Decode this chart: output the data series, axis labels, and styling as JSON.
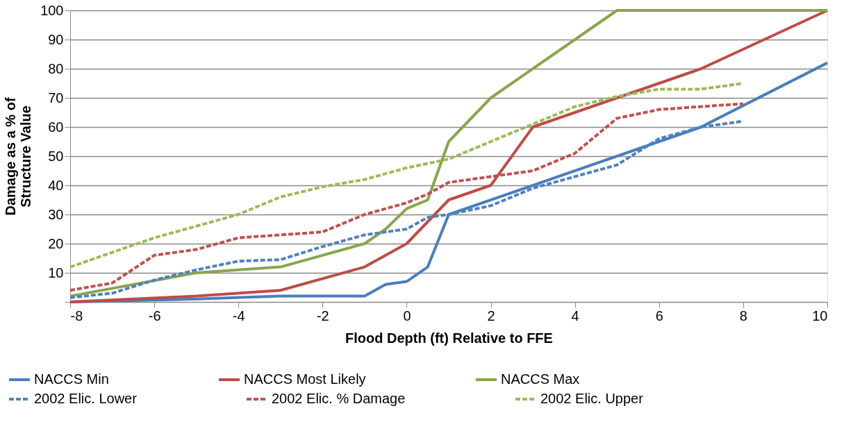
{
  "chart_data": {
    "type": "line",
    "xlabel": "Flood Depth (ft) Relative to FFE",
    "ylabel": "Damage as a % of\nStructure Value",
    "xlim": [
      -8,
      10
    ],
    "xticks": [
      -8,
      -6,
      -4,
      -2,
      0,
      2,
      4,
      6,
      8,
      10
    ],
    "ylim": [
      0,
      100
    ],
    "yticks": [
      {
        "value": 0,
        "label": null
      },
      10,
      20,
      30,
      40,
      50,
      60,
      70,
      80,
      90,
      100
    ],
    "grid": "y",
    "legend": "bottom",
    "marker": "none",
    "series": [
      {
        "name": "NACCS Min",
        "color": "#4a7ebb",
        "line_style": "solid",
        "x": [
          -8,
          -5,
          -3,
          -1,
          -0.5,
          0,
          0.5,
          1,
          7,
          10
        ],
        "values": [
          0,
          1,
          2,
          2,
          6,
          7,
          12,
          30,
          60,
          82
        ]
      },
      {
        "name": "2002 Elic. Lower",
        "color": "#4f81bd",
        "line_style": "dashed",
        "x": [
          -8,
          -7,
          -6,
          -5,
          -4,
          -3,
          -2,
          -1,
          0,
          0.5,
          1,
          2,
          3,
          4,
          5,
          6,
          7,
          8
        ],
        "values": [
          1.5,
          3,
          7.5,
          11,
          14,
          14.5,
          19,
          23,
          25,
          29,
          30,
          33,
          39,
          43,
          47,
          56,
          60,
          62
        ]
      },
      {
        "name": "NACCS Most Likely",
        "color": "#be4b48",
        "line_style": "solid",
        "x": [
          -8,
          -5,
          -3,
          -1,
          0,
          1,
          2,
          3,
          7,
          10
        ],
        "values": [
          0,
          2,
          4,
          12,
          20,
          35,
          40,
          60,
          80,
          100
        ]
      },
      {
        "name": "2002 Elic. % Damage",
        "color": "#c0504d",
        "line_style": "dashed",
        "x": [
          -8,
          -7,
          -6,
          -5,
          -4,
          -3,
          -2,
          -1,
          0,
          0.5,
          1,
          2,
          3,
          4,
          5,
          6,
          7,
          8
        ],
        "values": [
          4,
          6.5,
          16,
          18,
          22,
          23,
          24,
          30,
          34,
          37,
          41,
          43,
          45,
          51,
          63,
          66,
          67,
          68
        ]
      },
      {
        "name": "NACCS Max",
        "color": "#89a54e",
        "line_style": "solid",
        "x": [
          -8,
          -5,
          -3,
          -1,
          -0.5,
          0,
          0.5,
          1,
          2,
          5,
          10
        ],
        "values": [
          2,
          10,
          12,
          20,
          25,
          32,
          35,
          55,
          70,
          100,
          100
        ]
      },
      {
        "name": "2002 Elic. Upper",
        "color": "#9bbb59",
        "line_style": "dashed",
        "x": [
          -8,
          -7,
          -6,
          -5,
          -4,
          -3,
          -2,
          -1,
          0,
          1,
          2,
          3,
          4,
          5,
          6,
          7,
          8
        ],
        "values": [
          12,
          17,
          22,
          26,
          30,
          36,
          39.5,
          42,
          46,
          49,
          55,
          61,
          67,
          70.5,
          73,
          73,
          75
        ]
      }
    ]
  }
}
